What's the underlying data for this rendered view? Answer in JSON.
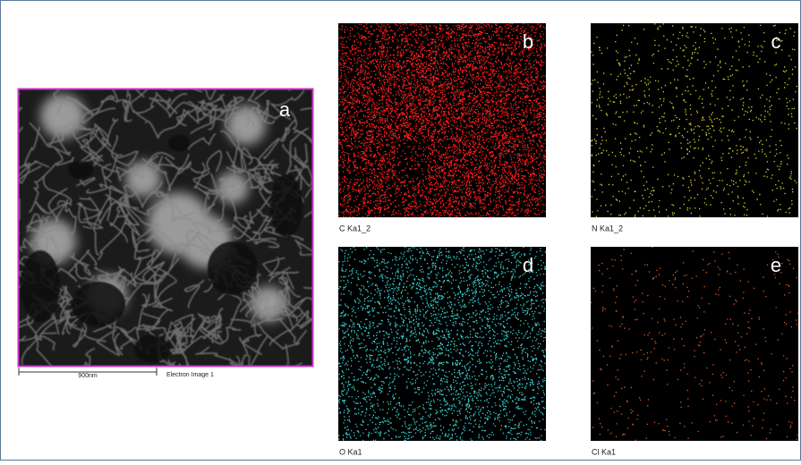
{
  "panels": [
    {
      "letter": "a",
      "caption": "Electron Image 1",
      "scale_bar": "900nm"
    },
    {
      "letter": "b",
      "caption": "C Ka1_2"
    },
    {
      "letter": "c",
      "caption": "N Ka1_2"
    },
    {
      "letter": "d",
      "caption": "O Ka1"
    },
    {
      "letter": "e",
      "caption": "Cl Ka1"
    }
  ]
}
